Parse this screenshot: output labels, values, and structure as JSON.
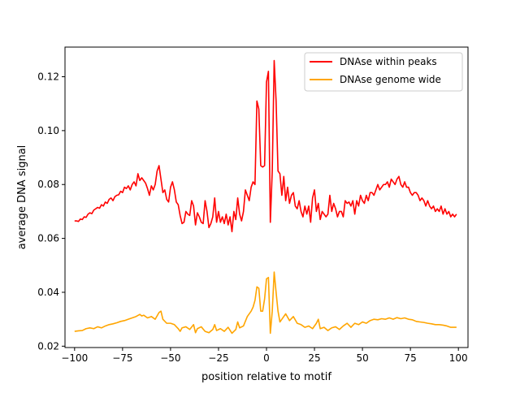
{
  "chart_data": {
    "type": "line",
    "title": "",
    "xlabel": "position relative to motif",
    "ylabel": "average DNA signal",
    "xlim": [
      -105,
      105
    ],
    "ylim": [
      0.0195,
      0.131
    ],
    "x_ticks": [
      -100,
      -75,
      -50,
      -25,
      0,
      25,
      50,
      75,
      100
    ],
    "y_ticks": [
      0.02,
      0.04,
      0.06,
      0.08,
      0.1,
      0.12
    ],
    "x_tick_labels": [
      "−100",
      "−75",
      "−50",
      "−25",
      "0",
      "25",
      "50",
      "75",
      "100"
    ],
    "y_tick_labels": [
      "0.02",
      "0.04",
      "0.06",
      "0.08",
      "0.10",
      "0.12"
    ],
    "grid": false,
    "legend": "top-right",
    "series": [
      {
        "name": "DNAse within peaks",
        "color": "#ff0000",
        "points": [
          [
            -100,
            0.0665
          ],
          [
            -99,
            0.0665
          ],
          [
            -98,
            0.0663
          ],
          [
            -97,
            0.0672
          ],
          [
            -96,
            0.067
          ],
          [
            -95,
            0.068
          ],
          [
            -94,
            0.0678
          ],
          [
            -93,
            0.069
          ],
          [
            -92,
            0.0695
          ],
          [
            -91,
            0.0692
          ],
          [
            -90,
            0.0705
          ],
          [
            -89,
            0.071
          ],
          [
            -88,
            0.0715
          ],
          [
            -87,
            0.0712
          ],
          [
            -86,
            0.0725
          ],
          [
            -85,
            0.072
          ],
          [
            -84,
            0.0735
          ],
          [
            -83,
            0.073
          ],
          [
            -82,
            0.0745
          ],
          [
            -81,
            0.075
          ],
          [
            -80,
            0.074
          ],
          [
            -79,
            0.0755
          ],
          [
            -78,
            0.076
          ],
          [
            -77,
            0.0762
          ],
          [
            -76,
            0.0775
          ],
          [
            -75,
            0.077
          ],
          [
            -74,
            0.079
          ],
          [
            -73,
            0.0785
          ],
          [
            -72,
            0.0795
          ],
          [
            -71,
            0.078
          ],
          [
            -70,
            0.08
          ],
          [
            -69,
            0.081
          ],
          [
            -68,
            0.0795
          ],
          [
            -67,
            0.084
          ],
          [
            -66,
            0.0815
          ],
          [
            -65,
            0.0825
          ],
          [
            -64,
            0.0815
          ],
          [
            -63,
            0.0805
          ],
          [
            -62,
            0.0785
          ],
          [
            -61,
            0.076
          ],
          [
            -60,
            0.0795
          ],
          [
            -59,
            0.078
          ],
          [
            -58,
            0.08
          ],
          [
            -57,
            0.085
          ],
          [
            -56,
            0.087
          ],
          [
            -55,
            0.082
          ],
          [
            -54,
            0.077
          ],
          [
            -53,
            0.078
          ],
          [
            -52,
            0.0745
          ],
          [
            -51,
            0.0735
          ],
          [
            -50,
            0.079
          ],
          [
            -49,
            0.081
          ],
          [
            -48,
            0.078
          ],
          [
            -47,
            0.0735
          ],
          [
            -46,
            0.0725
          ],
          [
            -45,
            0.0685
          ],
          [
            -44,
            0.0655
          ],
          [
            -43,
            0.066
          ],
          [
            -42,
            0.07
          ],
          [
            -41,
            0.069
          ],
          [
            -40,
            0.0685
          ],
          [
            -39,
            0.074
          ],
          [
            -38,
            0.072
          ],
          [
            -37,
            0.065
          ],
          [
            -36,
            0.0695
          ],
          [
            -35,
            0.068
          ],
          [
            -34,
            0.066
          ],
          [
            -33,
            0.0655
          ],
          [
            -32,
            0.074
          ],
          [
            -31,
            0.07
          ],
          [
            -30,
            0.064
          ],
          [
            -29,
            0.0655
          ],
          [
            -28,
            0.068
          ],
          [
            -27,
            0.075
          ],
          [
            -26,
            0.066
          ],
          [
            -25,
            0.07
          ],
          [
            -24,
            0.066
          ],
          [
            -23,
            0.068
          ],
          [
            -22,
            0.0655
          ],
          [
            -21,
            0.069
          ],
          [
            -20,
            0.065
          ],
          [
            -19,
            0.068
          ],
          [
            -18,
            0.0625
          ],
          [
            -17,
            0.07
          ],
          [
            -16,
            0.067
          ],
          [
            -15,
            0.075
          ],
          [
            -14,
            0.069
          ],
          [
            -13,
            0.0665
          ],
          [
            -12,
            0.07
          ],
          [
            -11,
            0.078
          ],
          [
            -10,
            0.076
          ],
          [
            -9,
            0.074
          ],
          [
            -8,
            0.079
          ],
          [
            -7,
            0.081
          ],
          [
            -6,
            0.08
          ],
          [
            -5,
            0.111
          ],
          [
            -4,
            0.108
          ],
          [
            -3,
            0.087
          ],
          [
            -2,
            0.0865
          ],
          [
            -1,
            0.087
          ],
          [
            0,
            0.118
          ],
          [
            1,
            0.122
          ],
          [
            2,
            0.066
          ],
          [
            3,
            0.085
          ],
          [
            4,
            0.126
          ],
          [
            5,
            0.111
          ],
          [
            6,
            0.085
          ],
          [
            7,
            0.084
          ],
          [
            8,
            0.076
          ],
          [
            9,
            0.083
          ],
          [
            10,
            0.074
          ],
          [
            11,
            0.079
          ],
          [
            12,
            0.073
          ],
          [
            13,
            0.076
          ],
          [
            14,
            0.077
          ],
          [
            15,
            0.072
          ],
          [
            16,
            0.071
          ],
          [
            17,
            0.074
          ],
          [
            18,
            0.07
          ],
          [
            19,
            0.068
          ],
          [
            20,
            0.072
          ],
          [
            21,
            0.069
          ],
          [
            22,
            0.072
          ],
          [
            23,
            0.066
          ],
          [
            24,
            0.075
          ],
          [
            25,
            0.078
          ],
          [
            26,
            0.07
          ],
          [
            27,
            0.073
          ],
          [
            28,
            0.067
          ],
          [
            29,
            0.07
          ],
          [
            30,
            0.069
          ],
          [
            31,
            0.068
          ],
          [
            32,
            0.069
          ],
          [
            33,
            0.076
          ],
          [
            34,
            0.07
          ],
          [
            35,
            0.073
          ],
          [
            36,
            0.071
          ],
          [
            37,
            0.068
          ],
          [
            38,
            0.07
          ],
          [
            39,
            0.07
          ],
          [
            40,
            0.068
          ],
          [
            41,
            0.074
          ],
          [
            42,
            0.073
          ],
          [
            43,
            0.0735
          ],
          [
            44,
            0.072
          ],
          [
            45,
            0.074
          ],
          [
            46,
            0.069
          ],
          [
            47,
            0.074
          ],
          [
            48,
            0.072
          ],
          [
            49,
            0.076
          ],
          [
            50,
            0.074
          ],
          [
            51,
            0.073
          ],
          [
            52,
            0.076
          ],
          [
            53,
            0.074
          ],
          [
            54,
            0.077
          ],
          [
            55,
            0.077
          ],
          [
            56,
            0.076
          ],
          [
            57,
            0.078
          ],
          [
            58,
            0.08
          ],
          [
            59,
            0.078
          ],
          [
            60,
            0.079
          ],
          [
            61,
            0.08
          ],
          [
            62,
            0.08
          ],
          [
            63,
            0.081
          ],
          [
            64,
            0.079
          ],
          [
            65,
            0.082
          ],
          [
            66,
            0.081
          ],
          [
            67,
            0.08
          ],
          [
            68,
            0.082
          ],
          [
            69,
            0.083
          ],
          [
            70,
            0.08
          ],
          [
            71,
            0.079
          ],
          [
            72,
            0.081
          ],
          [
            73,
            0.079
          ],
          [
            74,
            0.079
          ],
          [
            75,
            0.077
          ],
          [
            76,
            0.076
          ],
          [
            77,
            0.077
          ],
          [
            78,
            0.077
          ],
          [
            79,
            0.076
          ],
          [
            80,
            0.074
          ],
          [
            81,
            0.075
          ],
          [
            82,
            0.074
          ],
          [
            83,
            0.072
          ],
          [
            84,
            0.074
          ],
          [
            85,
            0.072
          ],
          [
            86,
            0.071
          ],
          [
            87,
            0.072
          ],
          [
            88,
            0.07
          ],
          [
            89,
            0.071
          ],
          [
            90,
            0.07
          ],
          [
            91,
            0.072
          ],
          [
            92,
            0.069
          ],
          [
            93,
            0.071
          ],
          [
            94,
            0.069
          ],
          [
            95,
            0.07
          ],
          [
            96,
            0.068
          ],
          [
            97,
            0.069
          ],
          [
            98,
            0.068
          ],
          [
            99,
            0.069
          ]
        ]
      },
      {
        "name": "DNAse genome wide",
        "color": "#ffa500",
        "points": [
          [
            -100,
            0.0255
          ],
          [
            -98,
            0.0257
          ],
          [
            -96,
            0.0258
          ],
          [
            -94,
            0.0265
          ],
          [
            -92,
            0.0268
          ],
          [
            -90,
            0.0265
          ],
          [
            -88,
            0.0272
          ],
          [
            -86,
            0.0268
          ],
          [
            -84,
            0.0275
          ],
          [
            -82,
            0.028
          ],
          [
            -80,
            0.0283
          ],
          [
            -78,
            0.0287
          ],
          [
            -76,
            0.0292
          ],
          [
            -74,
            0.0295
          ],
          [
            -72,
            0.03
          ],
          [
            -70,
            0.0305
          ],
          [
            -68,
            0.031
          ],
          [
            -66,
            0.0318
          ],
          [
            -65,
            0.0312
          ],
          [
            -64,
            0.0315
          ],
          [
            -62,
            0.0305
          ],
          [
            -60,
            0.031
          ],
          [
            -58,
            0.03
          ],
          [
            -56,
            0.0325
          ],
          [
            -55,
            0.033
          ],
          [
            -54,
            0.03
          ],
          [
            -52,
            0.0285
          ],
          [
            -50,
            0.0285
          ],
          [
            -48,
            0.028
          ],
          [
            -46,
            0.0265
          ],
          [
            -45,
            0.0255
          ],
          [
            -44,
            0.0268
          ],
          [
            -42,
            0.0272
          ],
          [
            -40,
            0.0262
          ],
          [
            -38,
            0.028
          ],
          [
            -37,
            0.025
          ],
          [
            -36,
            0.0265
          ],
          [
            -34,
            0.0272
          ],
          [
            -32,
            0.0255
          ],
          [
            -30,
            0.025
          ],
          [
            -28,
            0.0262
          ],
          [
            -27,
            0.028
          ],
          [
            -26,
            0.0258
          ],
          [
            -24,
            0.0265
          ],
          [
            -22,
            0.0255
          ],
          [
            -20,
            0.027
          ],
          [
            -18,
            0.0248
          ],
          [
            -16,
            0.0262
          ],
          [
            -15,
            0.029
          ],
          [
            -14,
            0.0268
          ],
          [
            -12,
            0.0275
          ],
          [
            -10,
            0.031
          ],
          [
            -8,
            0.033
          ],
          [
            -7,
            0.0345
          ],
          [
            -6,
            0.037
          ],
          [
            -5,
            0.042
          ],
          [
            -4,
            0.0415
          ],
          [
            -3,
            0.033
          ],
          [
            -2,
            0.033
          ],
          [
            -1,
            0.0375
          ],
          [
            0,
            0.045
          ],
          [
            1,
            0.0455
          ],
          [
            2,
            0.0248
          ],
          [
            3,
            0.033
          ],
          [
            4,
            0.0475
          ],
          [
            5,
            0.04
          ],
          [
            6,
            0.033
          ],
          [
            7,
            0.029
          ],
          [
            8,
            0.03
          ],
          [
            10,
            0.032
          ],
          [
            12,
            0.0295
          ],
          [
            14,
            0.031
          ],
          [
            16,
            0.0285
          ],
          [
            18,
            0.028
          ],
          [
            20,
            0.027
          ],
          [
            22,
            0.0275
          ],
          [
            24,
            0.0265
          ],
          [
            26,
            0.0285
          ],
          [
            27,
            0.03
          ],
          [
            28,
            0.0265
          ],
          [
            30,
            0.027
          ],
          [
            32,
            0.0258
          ],
          [
            34,
            0.0268
          ],
          [
            36,
            0.0272
          ],
          [
            38,
            0.0262
          ],
          [
            40,
            0.0275
          ],
          [
            42,
            0.0285
          ],
          [
            44,
            0.027
          ],
          [
            46,
            0.0285
          ],
          [
            48,
            0.028
          ],
          [
            50,
            0.029
          ],
          [
            52,
            0.0285
          ],
          [
            54,
            0.0295
          ],
          [
            56,
            0.03
          ],
          [
            58,
            0.0298
          ],
          [
            60,
            0.0302
          ],
          [
            62,
            0.03
          ],
          [
            64,
            0.0305
          ],
          [
            66,
            0.03
          ],
          [
            68,
            0.0306
          ],
          [
            70,
            0.0302
          ],
          [
            72,
            0.0305
          ],
          [
            74,
            0.03
          ],
          [
            76,
            0.0298
          ],
          [
            78,
            0.0292
          ],
          [
            80,
            0.029
          ],
          [
            82,
            0.0288
          ],
          [
            84,
            0.0285
          ],
          [
            86,
            0.0283
          ],
          [
            88,
            0.028
          ],
          [
            90,
            0.028
          ],
          [
            92,
            0.0278
          ],
          [
            94,
            0.0275
          ],
          [
            96,
            0.027
          ],
          [
            98,
            0.027
          ],
          [
            99,
            0.027
          ]
        ]
      }
    ]
  }
}
